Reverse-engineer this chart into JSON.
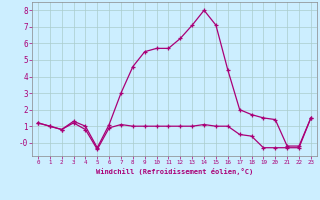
{
  "xlabel": "Windchill (Refroidissement éolien,°C)",
  "bg_color": "#cceeff",
  "grid_color": "#aacccc",
  "line_color": "#aa0077",
  "text_color": "#aa0077",
  "x_hours": [
    0,
    1,
    2,
    3,
    4,
    5,
    6,
    7,
    8,
    9,
    10,
    11,
    12,
    13,
    14,
    15,
    16,
    17,
    18,
    19,
    20,
    21,
    22,
    23
  ],
  "temp": [
    1.2,
    1.0,
    0.8,
    1.3,
    1.0,
    -0.3,
    1.1,
    3.0,
    4.6,
    5.5,
    5.7,
    5.7,
    6.3,
    7.1,
    8.0,
    7.1,
    4.4,
    2.0,
    1.7,
    1.5,
    1.4,
    -0.2,
    -0.2,
    1.5
  ],
  "windchill": [
    1.2,
    1.0,
    0.8,
    1.2,
    0.8,
    -0.4,
    0.9,
    1.1,
    1.0,
    1.0,
    1.0,
    1.0,
    1.0,
    1.0,
    1.1,
    1.0,
    1.0,
    0.5,
    0.4,
    -0.3,
    -0.3,
    -0.3,
    -0.3,
    1.5
  ],
  "ylim": [
    -0.8,
    8.5
  ],
  "yticks": [
    0,
    1,
    2,
    3,
    4,
    5,
    6,
    7,
    8
  ],
  "ytick_labels": [
    "-0",
    "1",
    "2",
    "3",
    "4",
    "5",
    "6",
    "7",
    "8"
  ]
}
